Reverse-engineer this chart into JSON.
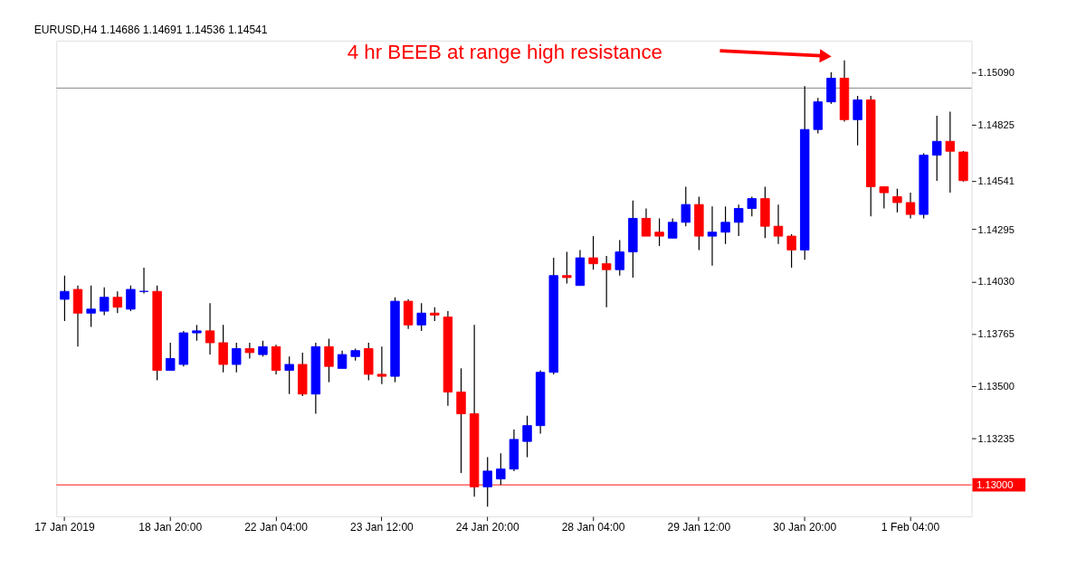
{
  "chart_data": {
    "type": "candlestick",
    "title": "EURUSD,H4  1.14686 1.14691 1.14536 1.14541",
    "annotations": [
      "4 hr BEEB at range high resistance"
    ],
    "categories": [
      "17 Jan 2019",
      null,
      null,
      null,
      null,
      null,
      null,
      null,
      "18 Jan 20:00",
      null,
      null,
      null,
      null,
      null,
      null,
      null,
      "22 Jan 04:00",
      null,
      null,
      null,
      null,
      null,
      null,
      null,
      "23 Jan 12:00",
      null,
      null,
      null,
      null,
      null,
      null,
      null,
      "24 Jan 20:00",
      null,
      null,
      null,
      null,
      null,
      null,
      null,
      "28 Jan 04:00",
      null,
      null,
      null,
      null,
      null,
      null,
      null,
      "29 Jan 12:00",
      null,
      null,
      null,
      null,
      null,
      null,
      null,
      "30 Jan 20:00",
      null,
      null,
      null,
      null,
      null,
      null,
      null,
      "1 Feb 04:00",
      null,
      null,
      null,
      null
    ],
    "ohlc": [
      [
        1.1394,
        1.1406,
        1.1383,
        1.1398
      ],
      [
        1.1399,
        1.1401,
        1.137,
        1.1387
      ],
      [
        1.1387,
        1.1401,
        1.138,
        1.1389
      ],
      [
        1.1388,
        1.14,
        1.1386,
        1.1395
      ],
      [
        1.1395,
        1.1398,
        1.1387,
        1.139
      ],
      [
        1.1389,
        1.1401,
        1.1388,
        1.1399
      ],
      [
        1.1398,
        1.141,
        1.1397,
        1.1398
      ],
      [
        1.1398,
        1.1401,
        1.1353,
        1.1358
      ],
      [
        1.1358,
        1.1372,
        1.1358,
        1.1364
      ],
      [
        1.1361,
        1.1378,
        1.136,
        1.1377
      ],
      [
        1.1377,
        1.1381,
        1.1373,
        1.1378
      ],
      [
        1.1378,
        1.1392,
        1.1366,
        1.1372
      ],
      [
        1.1372,
        1.1381,
        1.1357,
        1.1361
      ],
      [
        1.1361,
        1.1372,
        1.1357,
        1.1369
      ],
      [
        1.1369,
        1.1372,
        1.1364,
        1.1367
      ],
      [
        1.1366,
        1.1373,
        1.1365,
        1.137
      ],
      [
        1.137,
        1.1371,
        1.1356,
        1.1358
      ],
      [
        1.1358,
        1.1365,
        1.1346,
        1.1361
      ],
      [
        1.1361,
        1.1367,
        1.1345,
        1.1346
      ],
      [
        1.1346,
        1.1372,
        1.1336,
        1.137
      ],
      [
        1.137,
        1.1374,
        1.1352,
        1.136
      ],
      [
        1.1359,
        1.1368,
        1.1359,
        1.1366
      ],
      [
        1.1365,
        1.1369,
        1.1363,
        1.1368
      ],
      [
        1.1369,
        1.1372,
        1.1353,
        1.1356
      ],
      [
        1.1356,
        1.137,
        1.1351,
        1.1355
      ],
      [
        1.1355,
        1.1395,
        1.1352,
        1.1393
      ],
      [
        1.1393,
        1.1394,
        1.1379,
        1.1381
      ],
      [
        1.1381,
        1.1392,
        1.1378,
        1.1387
      ],
      [
        1.1387,
        1.139,
        1.1383,
        1.1386
      ],
      [
        1.1385,
        1.1388,
        1.134,
        1.1347
      ],
      [
        1.1347,
        1.1359,
        1.1306,
        1.1336
      ],
      [
        1.1336,
        1.1381,
        1.1294,
        1.1299
      ],
      [
        1.1299,
        1.1314,
        1.1289,
        1.1307
      ],
      [
        1.1303,
        1.1316,
        1.13,
        1.1308
      ],
      [
        1.1308,
        1.1328,
        1.1307,
        1.1323
      ],
      [
        1.1322,
        1.1335,
        1.1314,
        1.133
      ],
      [
        1.133,
        1.1358,
        1.1326,
        1.1357
      ],
      [
        1.1357,
        1.1415,
        1.1356,
        1.1406
      ],
      [
        1.1406,
        1.1418,
        1.1402,
        1.1405
      ],
      [
        1.1401,
        1.1419,
        1.1401,
        1.1415
      ],
      [
        1.1415,
        1.1426,
        1.1409,
        1.1412
      ],
      [
        1.1412,
        1.1416,
        1.139,
        1.1409
      ],
      [
        1.1409,
        1.1424,
        1.1406,
        1.1418
      ],
      [
        1.1418,
        1.1444,
        1.1405,
        1.1435
      ],
      [
        1.1435,
        1.144,
        1.1426,
        1.1426
      ],
      [
        1.1428,
        1.1435,
        1.1421,
        1.1426
      ],
      [
        1.1425,
        1.1435,
        1.1425,
        1.1433
      ],
      [
        1.1433,
        1.1451,
        1.1431,
        1.1442
      ],
      [
        1.1442,
        1.1446,
        1.1419,
        1.1426
      ],
      [
        1.1426,
        1.1441,
        1.1411,
        1.1428
      ],
      [
        1.1428,
        1.1441,
        1.1422,
        1.1433
      ],
      [
        1.1433,
        1.1442,
        1.1426,
        1.144
      ],
      [
        1.144,
        1.1446,
        1.1436,
        1.1445
      ],
      [
        1.1445,
        1.1451,
        1.1425,
        1.1431
      ],
      [
        1.1431,
        1.1442,
        1.1422,
        1.1426
      ],
      [
        1.1426,
        1.1427,
        1.141,
        1.1419
      ],
      [
        1.1419,
        1.1502,
        1.1414,
        1.148
      ],
      [
        1.148,
        1.1496,
        1.1478,
        1.1494
      ],
      [
        1.1494,
        1.1509,
        1.1493,
        1.1506
      ],
      [
        1.1506,
        1.1515,
        1.1484,
        1.1485
      ],
      [
        1.1485,
        1.1497,
        1.1472,
        1.1495
      ],
      [
        1.1495,
        1.1497,
        1.1436,
        1.1451
      ],
      [
        1.1451,
        1.1451,
        1.144,
        1.1448
      ],
      [
        1.1446,
        1.145,
        1.1438,
        1.1443
      ],
      [
        1.1443,
        1.1448,
        1.1435,
        1.1437
      ],
      [
        1.1437,
        1.1468,
        1.1435,
        1.1467
      ],
      [
        1.1467,
        1.1487,
        1.1454,
        1.1474
      ],
      [
        1.1474,
        1.1489,
        1.1448,
        1.1469
      ],
      [
        1.14686,
        1.14691,
        1.14536,
        1.14541
      ]
    ],
    "colors": [
      "#0000ff",
      "#ff0000",
      "#0000ff",
      "#0000ff",
      "#ff0000",
      "#0000ff",
      "#0000ff",
      "#ff0000",
      "#0000ff",
      "#0000ff",
      "#0000ff",
      "#ff0000",
      "#ff0000",
      "#0000ff",
      "#ff0000",
      "#0000ff",
      "#ff0000",
      "#0000ff",
      "#ff0000",
      "#0000ff",
      "#ff0000",
      "#0000ff",
      "#0000ff",
      "#ff0000",
      "#ff0000",
      "#0000ff",
      "#ff0000",
      "#0000ff",
      "#ff0000",
      "#ff0000",
      "#ff0000",
      "#ff0000",
      "#0000ff",
      "#0000ff",
      "#0000ff",
      "#0000ff",
      "#0000ff",
      "#0000ff",
      "#ff0000",
      "#0000ff",
      "#ff0000",
      "#ff0000",
      "#0000ff",
      "#0000ff",
      "#ff0000",
      "#ff0000",
      "#0000ff",
      "#0000ff",
      "#ff0000",
      "#0000ff",
      "#0000ff",
      "#0000ff",
      "#0000ff",
      "#ff0000",
      "#ff0000",
      "#ff0000",
      "#0000ff",
      "#0000ff",
      "#0000ff",
      "#ff0000",
      "#0000ff",
      "#ff0000",
      "#ff0000",
      "#ff0000",
      "#ff0000",
      "#0000ff",
      "#0000ff",
      "#ff0000",
      "#ff0000"
    ],
    "ylim": [
      1.1284,
      1.1525
    ],
    "yticks": [
      {
        "value": 1.1509,
        "label": "1.15090"
      },
      {
        "value": 1.14825,
        "label": "1.14825"
      },
      {
        "value": 1.14541,
        "label": "1.14541"
      },
      {
        "value": 1.14295,
        "label": "1.14295"
      },
      {
        "value": 1.1403,
        "label": "1.14030"
      },
      {
        "value": 1.13765,
        "label": "1.13765"
      },
      {
        "value": 1.135,
        "label": "1.13500"
      },
      {
        "value": 1.13235,
        "label": "1.13235"
      }
    ],
    "ref_lines": [
      {
        "axis": "y",
        "value": 1.1501,
        "color": "#808080",
        "line_style": "solid"
      },
      {
        "axis": "y",
        "value": 1.13,
        "label": "1.13000",
        "color": "#ff0000",
        "line_style": "solid"
      }
    ]
  }
}
